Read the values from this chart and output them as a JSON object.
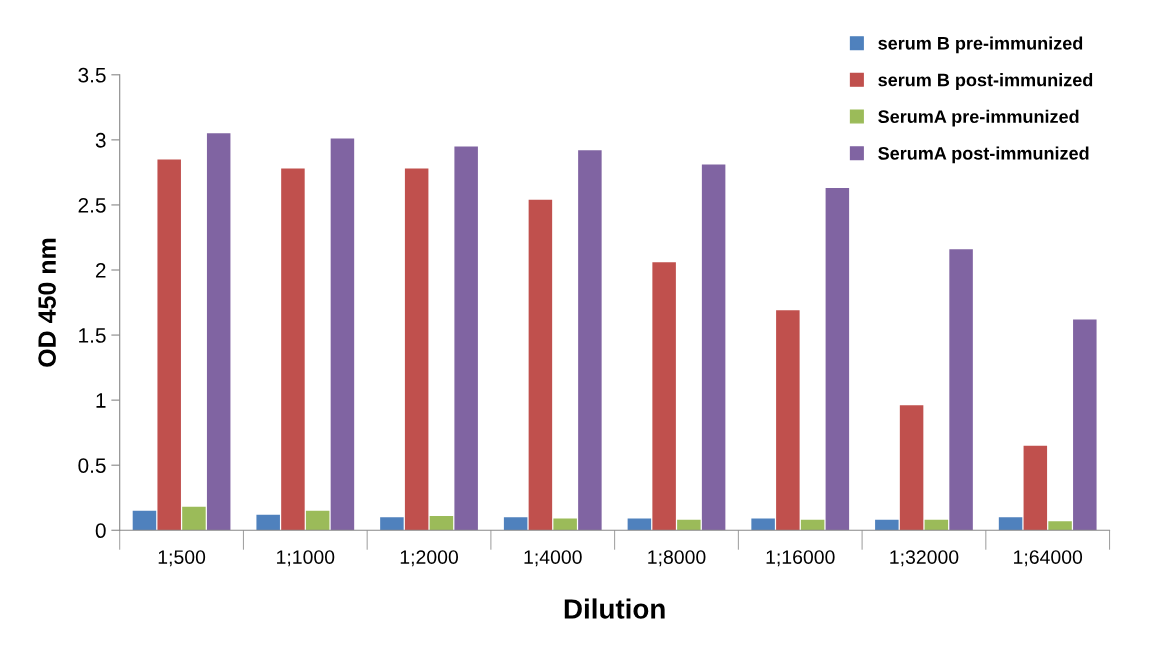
{
  "chart_data": {
    "type": "bar",
    "xlabel": "Dilution",
    "ylabel": "OD 450 nm",
    "categories": [
      "1;500",
      "1;1000",
      "1;2000",
      "1;4000",
      "1;8000",
      "1;16000",
      "1;32000",
      "1;64000"
    ],
    "series": [
      {
        "name": "serum B pre-immunized",
        "color": "#4f81bd",
        "values": [
          0.15,
          0.12,
          0.1,
          0.1,
          0.09,
          0.09,
          0.08,
          0.1
        ]
      },
      {
        "name": "serum B post-immunized",
        "color": "#c0504d",
        "values": [
          2.85,
          2.78,
          2.78,
          2.54,
          2.06,
          1.69,
          0.96,
          0.65
        ]
      },
      {
        "name": "SerumA pre-immunized",
        "color": "#9bbb59",
        "values": [
          0.18,
          0.15,
          0.11,
          0.09,
          0.08,
          0.08,
          0.08,
          0.07
        ]
      },
      {
        "name": "SerumA post-immunized",
        "color": "#8064a2",
        "values": [
          3.05,
          3.01,
          2.95,
          2.92,
          2.81,
          2.63,
          2.16,
          1.62
        ]
      }
    ],
    "ylim": [
      0,
      3.5
    ],
    "yticks": [
      0,
      0.5,
      1,
      1.5,
      2,
      2.5,
      3,
      3.5
    ],
    "grid": false,
    "legend": "top right"
  }
}
